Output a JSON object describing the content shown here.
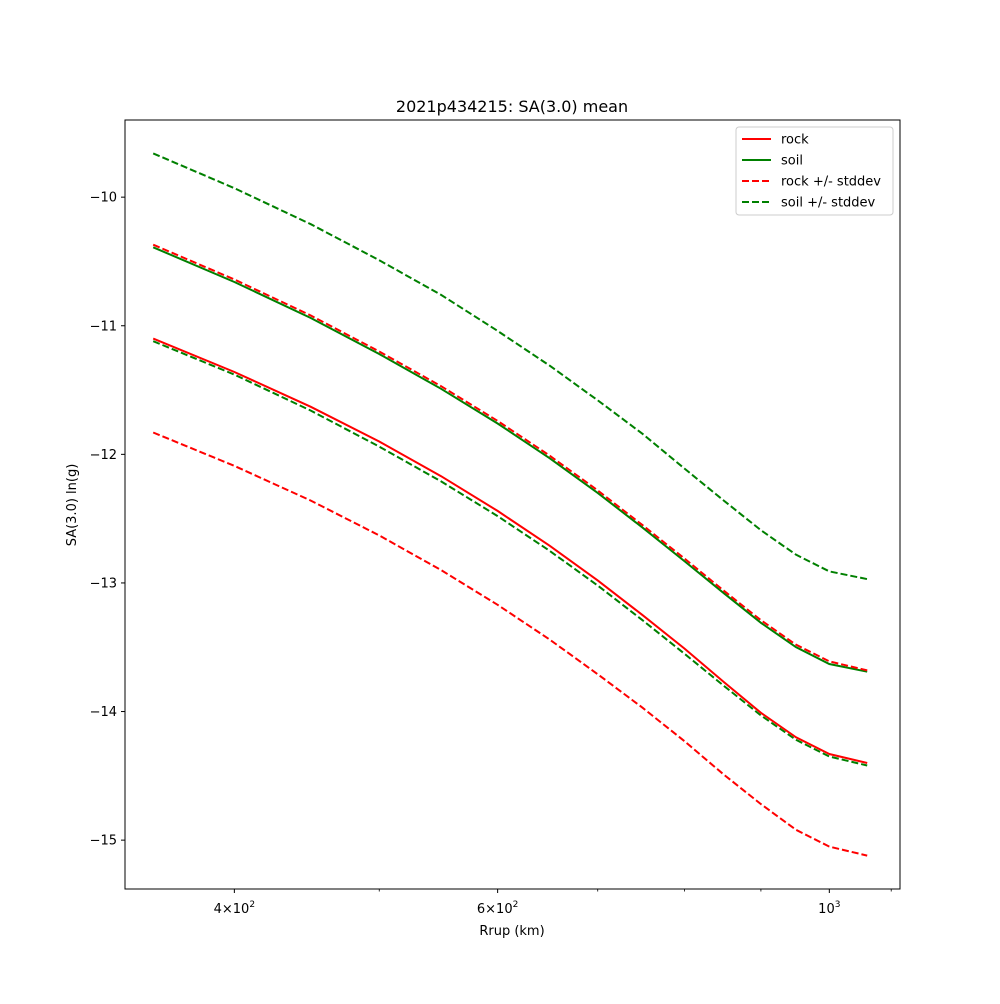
{
  "chart_data": {
    "type": "line",
    "title": "2021p434215: SA(3.0) mean",
    "xlabel": "Rrup (km)",
    "ylabel": "SA(3.0) ln(g)",
    "xscale": "log",
    "xlim": [
      338,
      1115
    ],
    "ylim": [
      -15.38,
      -9.4
    ],
    "x_ticks": [
      {
        "value": 400,
        "base": "4×10",
        "exp": "2"
      },
      {
        "value": 600,
        "base": "6×10",
        "exp": "2"
      },
      {
        "value": 1000,
        "base": "10",
        "exp": "3"
      }
    ],
    "y_ticks": [
      -10,
      -11,
      -12,
      -13,
      -14,
      -15
    ],
    "legend_position": "top-right",
    "grid": false,
    "x": [
      353,
      400,
      450,
      500,
      550,
      600,
      650,
      700,
      750,
      800,
      850,
      900,
      950,
      1000,
      1060
    ],
    "series": [
      {
        "name": "rock",
        "color": "#ff0000",
        "dash": "solid",
        "values": [
          -11.1,
          -11.36,
          -11.63,
          -11.9,
          -12.17,
          -12.44,
          -12.71,
          -12.98,
          -13.25,
          -13.51,
          -13.77,
          -14.01,
          -14.2,
          -14.33,
          -14.4
        ]
      },
      {
        "name": "soil",
        "color": "#008000",
        "dash": "solid",
        "values": [
          -10.39,
          -10.66,
          -10.94,
          -11.22,
          -11.49,
          -11.76,
          -12.03,
          -12.3,
          -12.57,
          -12.83,
          -13.08,
          -13.31,
          -13.5,
          -13.63,
          -13.69
        ]
      },
      {
        "name": "rock +/- stddev",
        "color": "#ff0000",
        "dash": "dashed",
        "values": [
          -10.37,
          -10.64,
          -10.92,
          -11.2,
          -11.47,
          -11.74,
          -12.01,
          -12.28,
          -12.55,
          -12.81,
          -13.06,
          -13.29,
          -13.48,
          -13.61,
          -13.68
        ]
      },
      {
        "name": "rock +/- stddev (lower)",
        "color": "#ff0000",
        "dash": "dashed",
        "in_legend": false,
        "values": [
          -11.83,
          -12.09,
          -12.36,
          -12.63,
          -12.9,
          -13.17,
          -13.44,
          -13.71,
          -13.97,
          -14.23,
          -14.49,
          -14.72,
          -14.92,
          -15.05,
          -15.12
        ]
      },
      {
        "name": "soil +/- stddev",
        "color": "#008000",
        "dash": "dashed",
        "values": [
          -9.66,
          -9.93,
          -10.21,
          -10.49,
          -10.76,
          -11.04,
          -11.31,
          -11.58,
          -11.84,
          -12.11,
          -12.36,
          -12.59,
          -12.78,
          -12.91,
          -12.97
        ]
      },
      {
        "name": "soil +/- stddev (lower)",
        "color": "#008000",
        "dash": "dashed",
        "in_legend": false,
        "values": [
          -11.12,
          -11.38,
          -11.66,
          -11.94,
          -12.21,
          -12.48,
          -12.75,
          -13.02,
          -13.29,
          -13.55,
          -13.8,
          -14.03,
          -14.22,
          -14.35,
          -14.42
        ]
      }
    ]
  }
}
